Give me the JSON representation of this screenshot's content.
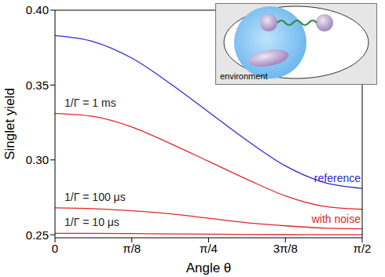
{
  "chart_data": {
    "type": "line",
    "x_label": "Angle θ",
    "y_label": "Singlet yield",
    "x": [
      0,
      0.1963,
      0.3927,
      0.589,
      0.7854,
      0.9817,
      1.1781,
      1.3744,
      1.5708
    ],
    "xlim": [
      0,
      1.5708
    ],
    "xticks": [
      0,
      {
        "value": 0.3927,
        "label": "π/8"
      },
      {
        "value": 0.7854,
        "label": "π/4"
      },
      {
        "value": 1.1781,
        "label": "3π/8"
      },
      {
        "value": 1.5708,
        "label": "π/2"
      }
    ],
    "ylim": [
      0.248,
      0.4
    ],
    "yticks": [
      0.25,
      {
        "value": 0.3,
        "label": "0.30"
      },
      0.35,
      {
        "value": 0.4,
        "label": "0.40"
      }
    ],
    "grid": false,
    "series": [
      {
        "name": "reference",
        "color": "#2b2bd4",
        "values": [
          0.383,
          0.379,
          0.368,
          0.351,
          0.332,
          0.313,
          0.296,
          0.285,
          0.281
        ]
      },
      {
        "name": "1/Γ = 1 ms",
        "color": "#e02828",
        "values": [
          0.331,
          0.329,
          0.322,
          0.311,
          0.299,
          0.287,
          0.276,
          0.269,
          0.267
        ]
      },
      {
        "name": "1/Γ = 100 μs",
        "color": "#e02828",
        "values": [
          0.268,
          0.2675,
          0.266,
          0.264,
          0.261,
          0.258,
          0.256,
          0.2545,
          0.254
        ]
      },
      {
        "name": "1/Γ = 10 μs",
        "color": "#e02828",
        "values": [
          0.251,
          0.251,
          0.2508,
          0.2506,
          0.2504,
          0.2502,
          0.2501,
          0.25,
          0.25
        ]
      }
    ],
    "annotations": [
      "with noise",
      "environment"
    ]
  }
}
